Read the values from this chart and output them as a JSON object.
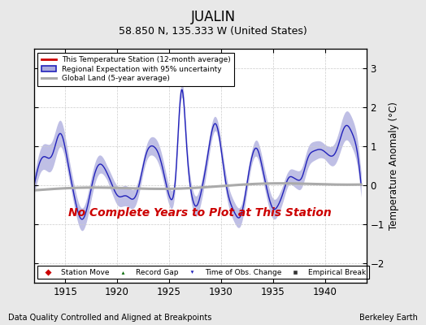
{
  "title": "JUALIN",
  "subtitle": "58.850 N, 135.333 W (United States)",
  "ylabel": "Temperature Anomaly (°C)",
  "xlabel_left": "Data Quality Controlled and Aligned at Breakpoints",
  "xlabel_right": "Berkeley Earth",
  "no_data_text": "No Complete Years to Plot at This Station",
  "ylim": [
    -2.5,
    3.5
  ],
  "xlim": [
    1912.0,
    1944.0
  ],
  "xticks": [
    1915,
    1920,
    1925,
    1930,
    1935,
    1940
  ],
  "yticks": [
    -2,
    -1,
    0,
    1,
    2,
    3
  ],
  "bg_color": "#e8e8e8",
  "plot_bg_color": "#ffffff",
  "regional_color": "#2222bb",
  "regional_fill_color": "#aaaadd",
  "station_color": "#cc0000",
  "global_color": "#aaaaaa",
  "no_data_color": "#cc0000",
  "seed": 42
}
